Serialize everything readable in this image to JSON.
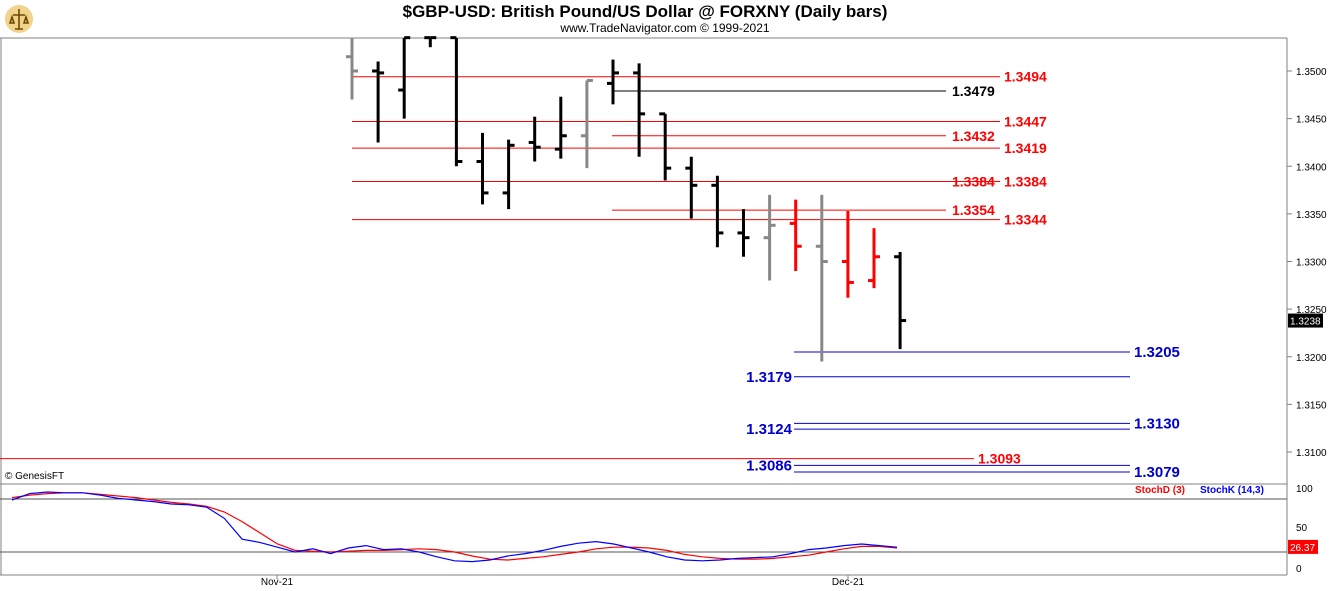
{
  "header": {
    "title": "$GBP-USD:  British Pound/US Dollar @ FORXNY  (Daily bars)",
    "subtitle": "www.TradeNavigator.com © 1999-2021"
  },
  "watermark": "© GenesisFT",
  "colors": {
    "resistance": "#ff0000",
    "support": "#0000cc",
    "pivot_black": "#000000",
    "bar_black": "#000000",
    "bar_gray": "#888888",
    "bar_red": "#ff0000",
    "stochD": "#ff0000",
    "stochK": "#0000ff"
  },
  "chart_data": [
    {
      "type": "ohlc",
      "symbol": "$GBP-USD",
      "ylim": [
        1.3055,
        1.3535
      ],
      "y_ticks": [
        "1.3100",
        "1.3150",
        "1.3200",
        "1.3250",
        "1.3300",
        "1.3350",
        "1.3400",
        "1.3450",
        "1.3500"
      ],
      "x_ticks": [
        "Nov-21",
        "Dec-21"
      ],
      "last_price": "1.3238",
      "bars": [
        {
          "o": 1.3515,
          "h": 1.3535,
          "l": 1.347,
          "c": 1.35,
          "color": "gray"
        },
        {
          "o": 1.35,
          "h": 1.351,
          "l": 1.3425,
          "c": 1.3498,
          "color": "black"
        },
        {
          "o": 1.348,
          "h": 1.3535,
          "l": 1.345,
          "c": 1.3535,
          "color": "black"
        },
        {
          "o": 1.3535,
          "h": 1.3535,
          "l": 1.3525,
          "c": 1.3535,
          "color": "black"
        },
        {
          "o": 1.3535,
          "h": 1.3535,
          "l": 1.34,
          "c": 1.3405,
          "color": "black"
        },
        {
          "o": 1.3405,
          "h": 1.3435,
          "l": 1.336,
          "c": 1.3372,
          "color": "black"
        },
        {
          "o": 1.3372,
          "h": 1.3428,
          "l": 1.3355,
          "c": 1.3422,
          "color": "black"
        },
        {
          "o": 1.3425,
          "h": 1.3452,
          "l": 1.3405,
          "c": 1.342,
          "color": "black"
        },
        {
          "o": 1.3418,
          "h": 1.3473,
          "l": 1.3408,
          "c": 1.3432,
          "color": "black"
        },
        {
          "o": 1.3432,
          "h": 1.349,
          "l": 1.3398,
          "c": 1.349,
          "color": "gray"
        },
        {
          "o": 1.3487,
          "h": 1.3512,
          "l": 1.3465,
          "c": 1.3498,
          "color": "black"
        },
        {
          "o": 1.3498,
          "h": 1.3508,
          "l": 1.341,
          "c": 1.3455,
          "color": "black"
        },
        {
          "o": 1.3455,
          "h": 1.3455,
          "l": 1.3385,
          "c": 1.3398,
          "color": "black"
        },
        {
          "o": 1.3398,
          "h": 1.341,
          "l": 1.3345,
          "c": 1.338,
          "color": "black"
        },
        {
          "o": 1.338,
          "h": 1.339,
          "l": 1.3315,
          "c": 1.333,
          "color": "black"
        },
        {
          "o": 1.333,
          "h": 1.3355,
          "l": 1.3305,
          "c": 1.3325,
          "color": "black"
        },
        {
          "o": 1.3325,
          "h": 1.337,
          "l": 1.328,
          "c": 1.3338,
          "color": "gray"
        },
        {
          "o": 1.334,
          "h": 1.3365,
          "l": 1.329,
          "c": 1.3316,
          "color": "red"
        },
        {
          "o": 1.3316,
          "h": 1.337,
          "l": 1.3195,
          "c": 1.33,
          "color": "gray"
        },
        {
          "o": 1.33,
          "h": 1.3353,
          "l": 1.3262,
          "c": 1.3278,
          "color": "red"
        },
        {
          "o": 1.328,
          "h": 1.3335,
          "l": 1.3272,
          "c": 1.3305,
          "color": "red"
        },
        {
          "o": 1.3305,
          "h": 1.331,
          "l": 1.3208,
          "c": 1.3238,
          "color": "black"
        }
      ],
      "levels": [
        {
          "label": "1.3494",
          "value": 1.3494,
          "color": "red"
        },
        {
          "label": "1.3479",
          "value": 1.3479,
          "color": "black"
        },
        {
          "label": "1.3447",
          "value": 1.3447,
          "color": "red"
        },
        {
          "label": "1.3432",
          "value": 1.3432,
          "color": "red"
        },
        {
          "label": "1.3419",
          "value": 1.3419,
          "color": "red"
        },
        {
          "label": "1.3384",
          "value": 1.3384,
          "color": "red"
        },
        {
          "label": "1.3384",
          "value": 1.3384,
          "color": "red"
        },
        {
          "label": "1.3354",
          "value": 1.3354,
          "color": "red"
        },
        {
          "label": "1.3344",
          "value": 1.3344,
          "color": "red"
        },
        {
          "label": "1.3205",
          "value": 1.3205,
          "color": "blue"
        },
        {
          "label": "1.3179",
          "value": 1.3179,
          "color": "blue"
        },
        {
          "label": "1.3130",
          "value": 1.313,
          "color": "blue"
        },
        {
          "label": "1.3124",
          "value": 1.3124,
          "color": "blue"
        },
        {
          "label": "1.3093",
          "value": 1.3093,
          "color": "red"
        },
        {
          "label": "1.3086",
          "value": 1.3086,
          "color": "blue"
        },
        {
          "label": "1.3079",
          "value": 1.3079,
          "color": "blue"
        }
      ]
    },
    {
      "type": "line",
      "name": "Stochastic",
      "ylim": [
        0,
        100
      ],
      "y_ticks": [
        "100",
        "50",
        "0"
      ],
      "last_value": "26.37",
      "series": [
        {
          "name": "StochD (3)",
          "color": "#ff0000",
          "values": [
            88,
            91,
            93,
            94,
            94,
            92,
            90,
            88,
            85,
            82,
            80,
            77,
            70,
            58,
            44,
            30,
            22,
            21,
            20,
            21,
            22,
            22,
            23,
            24,
            23,
            20,
            15,
            11,
            10,
            12,
            14,
            17,
            20,
            24,
            26,
            26,
            25,
            22,
            17,
            14,
            12,
            11,
            11,
            12,
            14,
            16,
            20,
            24,
            27,
            27,
            25
          ]
        },
        {
          "name": "StochK (14,3)",
          "color": "#0000ff",
          "values": [
            85,
            93,
            95,
            94,
            94,
            91,
            87,
            85,
            83,
            80,
            79,
            76,
            62,
            36,
            32,
            26,
            20,
            24,
            18,
            25,
            28,
            23,
            24,
            20,
            14,
            9,
            8,
            10,
            15,
            18,
            22,
            27,
            31,
            33,
            30,
            25,
            20,
            14,
            10,
            9,
            10,
            12,
            13,
            14,
            18,
            23,
            25,
            28,
            30,
            28,
            26
          ]
        }
      ]
    }
  ]
}
